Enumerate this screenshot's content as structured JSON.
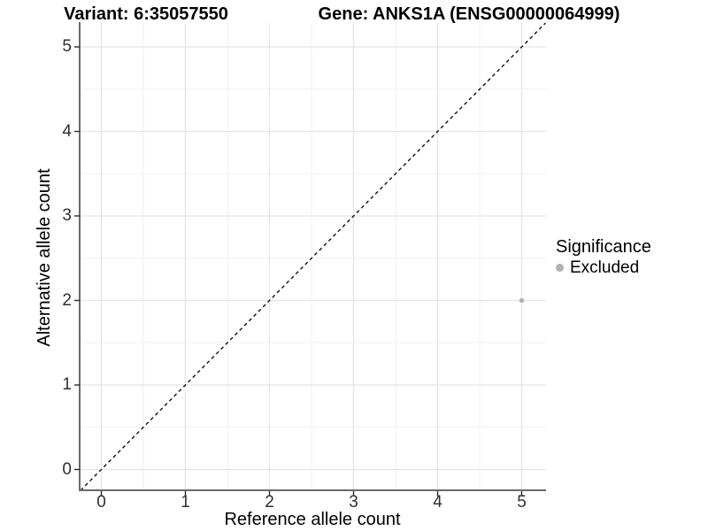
{
  "chart_data": {
    "type": "scatter",
    "titles": {
      "left": "Variant: 6:35057550",
      "right": "Gene: ANKS1A (ENSG00000064999)"
    },
    "xlabel": "Reference allele count",
    "ylabel": "Alternative allele count",
    "x_ticks": [
      "0",
      "1",
      "2",
      "3",
      "4",
      "5"
    ],
    "y_ticks": [
      "0",
      "1",
      "2",
      "3",
      "4",
      "5"
    ],
    "xlim": [
      -0.27,
      5.29
    ],
    "ylim": [
      -0.26,
      5.28
    ],
    "grid": {
      "major": true,
      "minor": true
    },
    "reference_line": {
      "slope": 1,
      "intercept": 0,
      "style": "dashed",
      "color": "#000000"
    },
    "points": [
      {
        "x": 5,
        "y": 2,
        "series": "Excluded"
      }
    ],
    "legend": {
      "position": "right",
      "title": "Significance",
      "items": [
        {
          "label": "Excluded",
          "color": "#b1b1b1"
        }
      ]
    },
    "colors": {
      "point": "#b1b1b1",
      "grid_major": "#e4e4e4",
      "grid_minor": "#f1f1f1",
      "axis_line": "#6a6a6a",
      "tick_mark": "#2b2b2b",
      "tick_label": "#303030",
      "background": "#ffffff"
    }
  }
}
